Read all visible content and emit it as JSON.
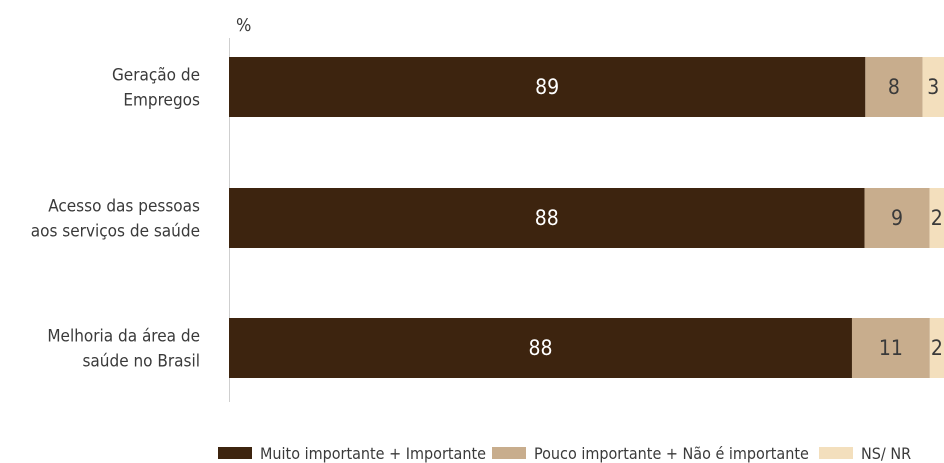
{
  "chart_data": {
    "type": "bar",
    "orientation": "horizontal",
    "stacked": true,
    "percent": true,
    "unit_label": "%",
    "categories": [
      [
        "Geração de",
        "Empregos"
      ],
      [
        "Acesso das pessoas",
        "aos serviços de saúde"
      ],
      [
        "Melhoria da área de",
        "saúde no Brasil"
      ]
    ],
    "series": [
      {
        "name": "Muito importante + Importante",
        "values": [
          89,
          88,
          88
        ],
        "color": "#3d240f",
        "label_color": "#ffffff"
      },
      {
        "name": "Pouco importante + Não é importante",
        "values": [
          8,
          9,
          11
        ],
        "color": "#c8ad8d",
        "label_color": "#3a3a3a"
      },
      {
        "name": "NS/ NR",
        "values": [
          3,
          2,
          2
        ],
        "color": "#f3dfbd",
        "label_color": "#3a3a3a"
      }
    ],
    "legend_position": "bottom",
    "grid": false
  }
}
